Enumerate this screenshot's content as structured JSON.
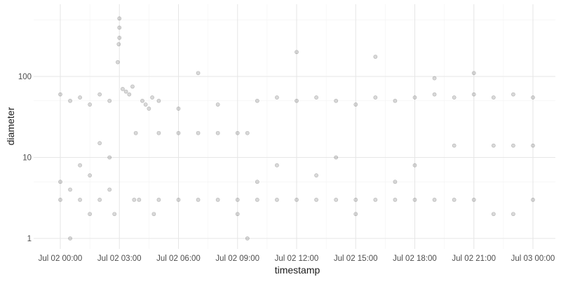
{
  "chart_data": {
    "type": "scatter",
    "title": "",
    "xlabel": "timestamp",
    "ylabel": "diameter",
    "y_scale": "log10",
    "ylim": [
      0.8,
      600
    ],
    "xlim": [
      "2021-07-02 00:00",
      "2021-07-03 00:00"
    ],
    "x_ticks": [
      "Jul 02 00:00",
      "Jul 02 03:00",
      "Jul 02 06:00",
      "Jul 02 09:00",
      "Jul 02 12:00",
      "Jul 02 15:00",
      "Jul 02 18:00",
      "Jul 02 21:00",
      "Jul 03 00:00"
    ],
    "y_ticks": [
      "1",
      "10",
      "100"
    ],
    "grid": true,
    "point_color": "#000000",
    "point_alpha": 0.15,
    "series": [
      {
        "points": [
          {
            "x": "2021-07-02 00:00",
            "y": 3
          },
          {
            "x": "2021-07-02 00:00",
            "y": 5
          },
          {
            "x": "2021-07-02 00:00",
            "y": 60
          },
          {
            "x": "2021-07-02 00:30",
            "y": 1
          },
          {
            "x": "2021-07-02 00:30",
            "y": 4
          },
          {
            "x": "2021-07-02 00:30",
            "y": 50
          },
          {
            "x": "2021-07-02 01:00",
            "y": 3
          },
          {
            "x": "2021-07-02 01:00",
            "y": 8
          },
          {
            "x": "2021-07-02 01:00",
            "y": 55
          },
          {
            "x": "2021-07-02 01:30",
            "y": 2
          },
          {
            "x": "2021-07-02 01:30",
            "y": 6
          },
          {
            "x": "2021-07-02 01:30",
            "y": 45
          },
          {
            "x": "2021-07-02 02:00",
            "y": 3
          },
          {
            "x": "2021-07-02 02:00",
            "y": 15
          },
          {
            "x": "2021-07-02 02:00",
            "y": 60
          },
          {
            "x": "2021-07-02 02:30",
            "y": 4
          },
          {
            "x": "2021-07-02 02:30",
            "y": 10
          },
          {
            "x": "2021-07-02 02:30",
            "y": 50
          },
          {
            "x": "2021-07-02 02:45",
            "y": 2
          },
          {
            "x": "2021-07-02 02:55",
            "y": 150
          },
          {
            "x": "2021-07-02 02:58",
            "y": 250
          },
          {
            "x": "2021-07-02 03:00",
            "y": 400
          },
          {
            "x": "2021-07-02 03:00",
            "y": 520
          },
          {
            "x": "2021-07-02 03:00",
            "y": 300
          },
          {
            "x": "2021-07-02 03:10",
            "y": 70
          },
          {
            "x": "2021-07-02 03:20",
            "y": 65
          },
          {
            "x": "2021-07-02 03:30",
            "y": 60
          },
          {
            "x": "2021-07-02 03:40",
            "y": 75
          },
          {
            "x": "2021-07-02 03:45",
            "y": 3
          },
          {
            "x": "2021-07-02 03:50",
            "y": 20
          },
          {
            "x": "2021-07-02 04:00",
            "y": 3
          },
          {
            "x": "2021-07-02 04:10",
            "y": 50
          },
          {
            "x": "2021-07-02 04:20",
            "y": 45
          },
          {
            "x": "2021-07-02 04:30",
            "y": 40
          },
          {
            "x": "2021-07-02 04:40",
            "y": 55
          },
          {
            "x": "2021-07-02 04:45",
            "y": 2
          },
          {
            "x": "2021-07-02 05:00",
            "y": 20
          },
          {
            "x": "2021-07-02 05:00",
            "y": 3
          },
          {
            "x": "2021-07-02 05:00",
            "y": 50
          },
          {
            "x": "2021-07-02 06:00",
            "y": 20
          },
          {
            "x": "2021-07-02 06:00",
            "y": 3
          },
          {
            "x": "2021-07-02 06:00",
            "y": 40
          },
          {
            "x": "2021-07-02 07:00",
            "y": 20
          },
          {
            "x": "2021-07-02 07:00",
            "y": 3
          },
          {
            "x": "2021-07-02 07:00",
            "y": 110
          },
          {
            "x": "2021-07-02 08:00",
            "y": 20
          },
          {
            "x": "2021-07-02 08:00",
            "y": 3
          },
          {
            "x": "2021-07-02 08:00",
            "y": 45
          },
          {
            "x": "2021-07-02 09:00",
            "y": 20
          },
          {
            "x": "2021-07-02 09:00",
            "y": 3
          },
          {
            "x": "2021-07-02 09:00",
            "y": 2
          },
          {
            "x": "2021-07-02 09:30",
            "y": 20
          },
          {
            "x": "2021-07-02 09:30",
            "y": 1
          },
          {
            "x": "2021-07-02 10:00",
            "y": 3
          },
          {
            "x": "2021-07-02 10:00",
            "y": 5
          },
          {
            "x": "2021-07-02 10:00",
            "y": 50
          },
          {
            "x": "2021-07-02 11:00",
            "y": 3
          },
          {
            "x": "2021-07-02 11:00",
            "y": 8
          },
          {
            "x": "2021-07-02 11:00",
            "y": 55
          },
          {
            "x": "2021-07-02 12:00",
            "y": 3
          },
          {
            "x": "2021-07-02 12:00",
            "y": 200
          },
          {
            "x": "2021-07-02 12:00",
            "y": 50
          },
          {
            "x": "2021-07-02 13:00",
            "y": 3
          },
          {
            "x": "2021-07-02 13:00",
            "y": 6
          },
          {
            "x": "2021-07-02 13:00",
            "y": 55
          },
          {
            "x": "2021-07-02 14:00",
            "y": 3
          },
          {
            "x": "2021-07-02 14:00",
            "y": 10
          },
          {
            "x": "2021-07-02 14:00",
            "y": 50
          },
          {
            "x": "2021-07-02 15:00",
            "y": 3
          },
          {
            "x": "2021-07-02 15:00",
            "y": 2
          },
          {
            "x": "2021-07-02 15:00",
            "y": 45
          },
          {
            "x": "2021-07-02 16:00",
            "y": 3
          },
          {
            "x": "2021-07-02 16:00",
            "y": 175
          },
          {
            "x": "2021-07-02 16:00",
            "y": 55
          },
          {
            "x": "2021-07-02 17:00",
            "y": 3
          },
          {
            "x": "2021-07-02 17:00",
            "y": 5
          },
          {
            "x": "2021-07-02 17:00",
            "y": 50
          },
          {
            "x": "2021-07-02 18:00",
            "y": 3
          },
          {
            "x": "2021-07-02 18:00",
            "y": 8
          },
          {
            "x": "2021-07-02 18:00",
            "y": 55
          },
          {
            "x": "2021-07-02 19:00",
            "y": 3
          },
          {
            "x": "2021-07-02 19:00",
            "y": 95
          },
          {
            "x": "2021-07-02 19:00",
            "y": 60
          },
          {
            "x": "2021-07-02 20:00",
            "y": 3
          },
          {
            "x": "2021-07-02 20:00",
            "y": 14
          },
          {
            "x": "2021-07-02 20:00",
            "y": 55
          },
          {
            "x": "2021-07-02 21:00",
            "y": 3
          },
          {
            "x": "2021-07-02 21:00",
            "y": 110
          },
          {
            "x": "2021-07-02 21:00",
            "y": 60
          },
          {
            "x": "2021-07-02 22:00",
            "y": 2
          },
          {
            "x": "2021-07-02 22:00",
            "y": 14
          },
          {
            "x": "2021-07-02 22:00",
            "y": 55
          },
          {
            "x": "2021-07-02 23:00",
            "y": 2
          },
          {
            "x": "2021-07-02 23:00",
            "y": 14
          },
          {
            "x": "2021-07-02 23:00",
            "y": 60
          },
          {
            "x": "2021-07-03 00:00",
            "y": 3
          },
          {
            "x": "2021-07-03 00:00",
            "y": 14
          },
          {
            "x": "2021-07-03 00:00",
            "y": 55
          }
        ]
      }
    ]
  }
}
